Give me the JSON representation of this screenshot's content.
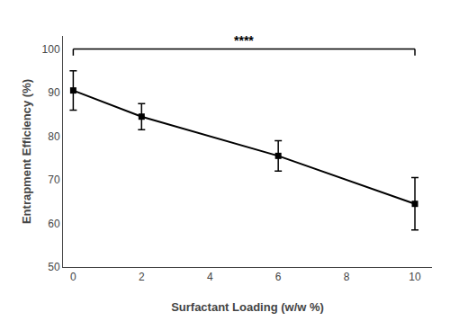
{
  "chart_data": {
    "type": "line",
    "x": [
      0,
      2,
      6,
      10
    ],
    "values": [
      90.5,
      84.5,
      75.5,
      64.5
    ],
    "yerr": [
      4.5,
      3.0,
      3.5,
      6.0
    ],
    "color": "#000000",
    "marker": "square",
    "xlabel": "Surfactant Loading (w/w %)",
    "ylabel": "Entrapment Efficiency (%)",
    "xlim": [
      -0.3,
      10.5
    ],
    "ylim": [
      50,
      103
    ],
    "xticks": [
      0,
      2,
      4,
      6,
      8,
      10
    ],
    "yticks": [
      50,
      60,
      70,
      80,
      90,
      100
    ],
    "grid": false,
    "annotations": [
      {
        "text": "****",
        "x": [
          0,
          10
        ],
        "y": 100
      }
    ]
  }
}
